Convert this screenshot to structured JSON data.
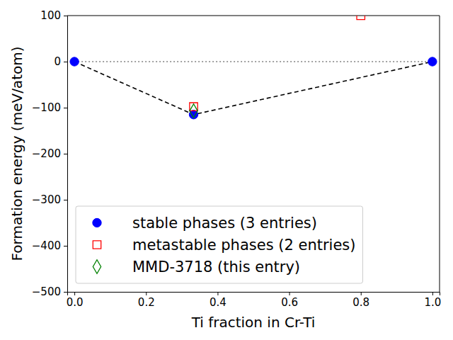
{
  "chart_data": {
    "type": "scatter",
    "x_label": "Ti fraction in Cr-Ti",
    "y_label": "Formation energy (meV/atom)",
    "xlim": [
      -0.02,
      1.02
    ],
    "ylim": [
      -500,
      100
    ],
    "xticks": [
      {
        "value": 0,
        "label": "0.0"
      },
      {
        "value": 0.2,
        "label": "0.2"
      },
      {
        "value": 0.4,
        "label": "0.4"
      },
      {
        "value": 0.6,
        "label": "0.6"
      },
      {
        "value": 0.8,
        "label": "0.8"
      },
      {
        "value": 1,
        "label": "1.0"
      }
    ],
    "yticks": [
      {
        "value": -500,
        "label": "−500"
      },
      {
        "value": -400,
        "label": "−400"
      },
      {
        "value": -300,
        "label": "−300"
      },
      {
        "value": -200,
        "label": "−200"
      },
      {
        "value": -100,
        "label": "−100"
      },
      0,
      100
    ],
    "legend": "lower left",
    "series": [
      {
        "name": "stable phases (3 entries)",
        "color": "#0000ff",
        "marker": "circle",
        "x": [
          0,
          0.333,
          1
        ],
        "values": [
          0,
          -115,
          0
        ]
      },
      {
        "name": "metastable phases (2 entries)",
        "color": "#ff0000",
        "marker": "square-open",
        "x": [
          0.333,
          0.8
        ],
        "values": [
          -98,
          100
        ]
      },
      {
        "name": "MMD-3718 (this entry)",
        "color": "#008000",
        "marker": "diamond-open",
        "x": [
          0.333
        ],
        "values": [
          -107
        ]
      }
    ],
    "hull": {
      "color": "#000000",
      "line_style": "dashed",
      "x": [
        0,
        0.333,
        1
      ],
      "values": [
        0,
        -115,
        0
      ]
    },
    "zero_line": {
      "color": "#808080",
      "line_style": "dotted",
      "x": [
        0,
        1
      ],
      "values": [
        0,
        0
      ]
    }
  }
}
